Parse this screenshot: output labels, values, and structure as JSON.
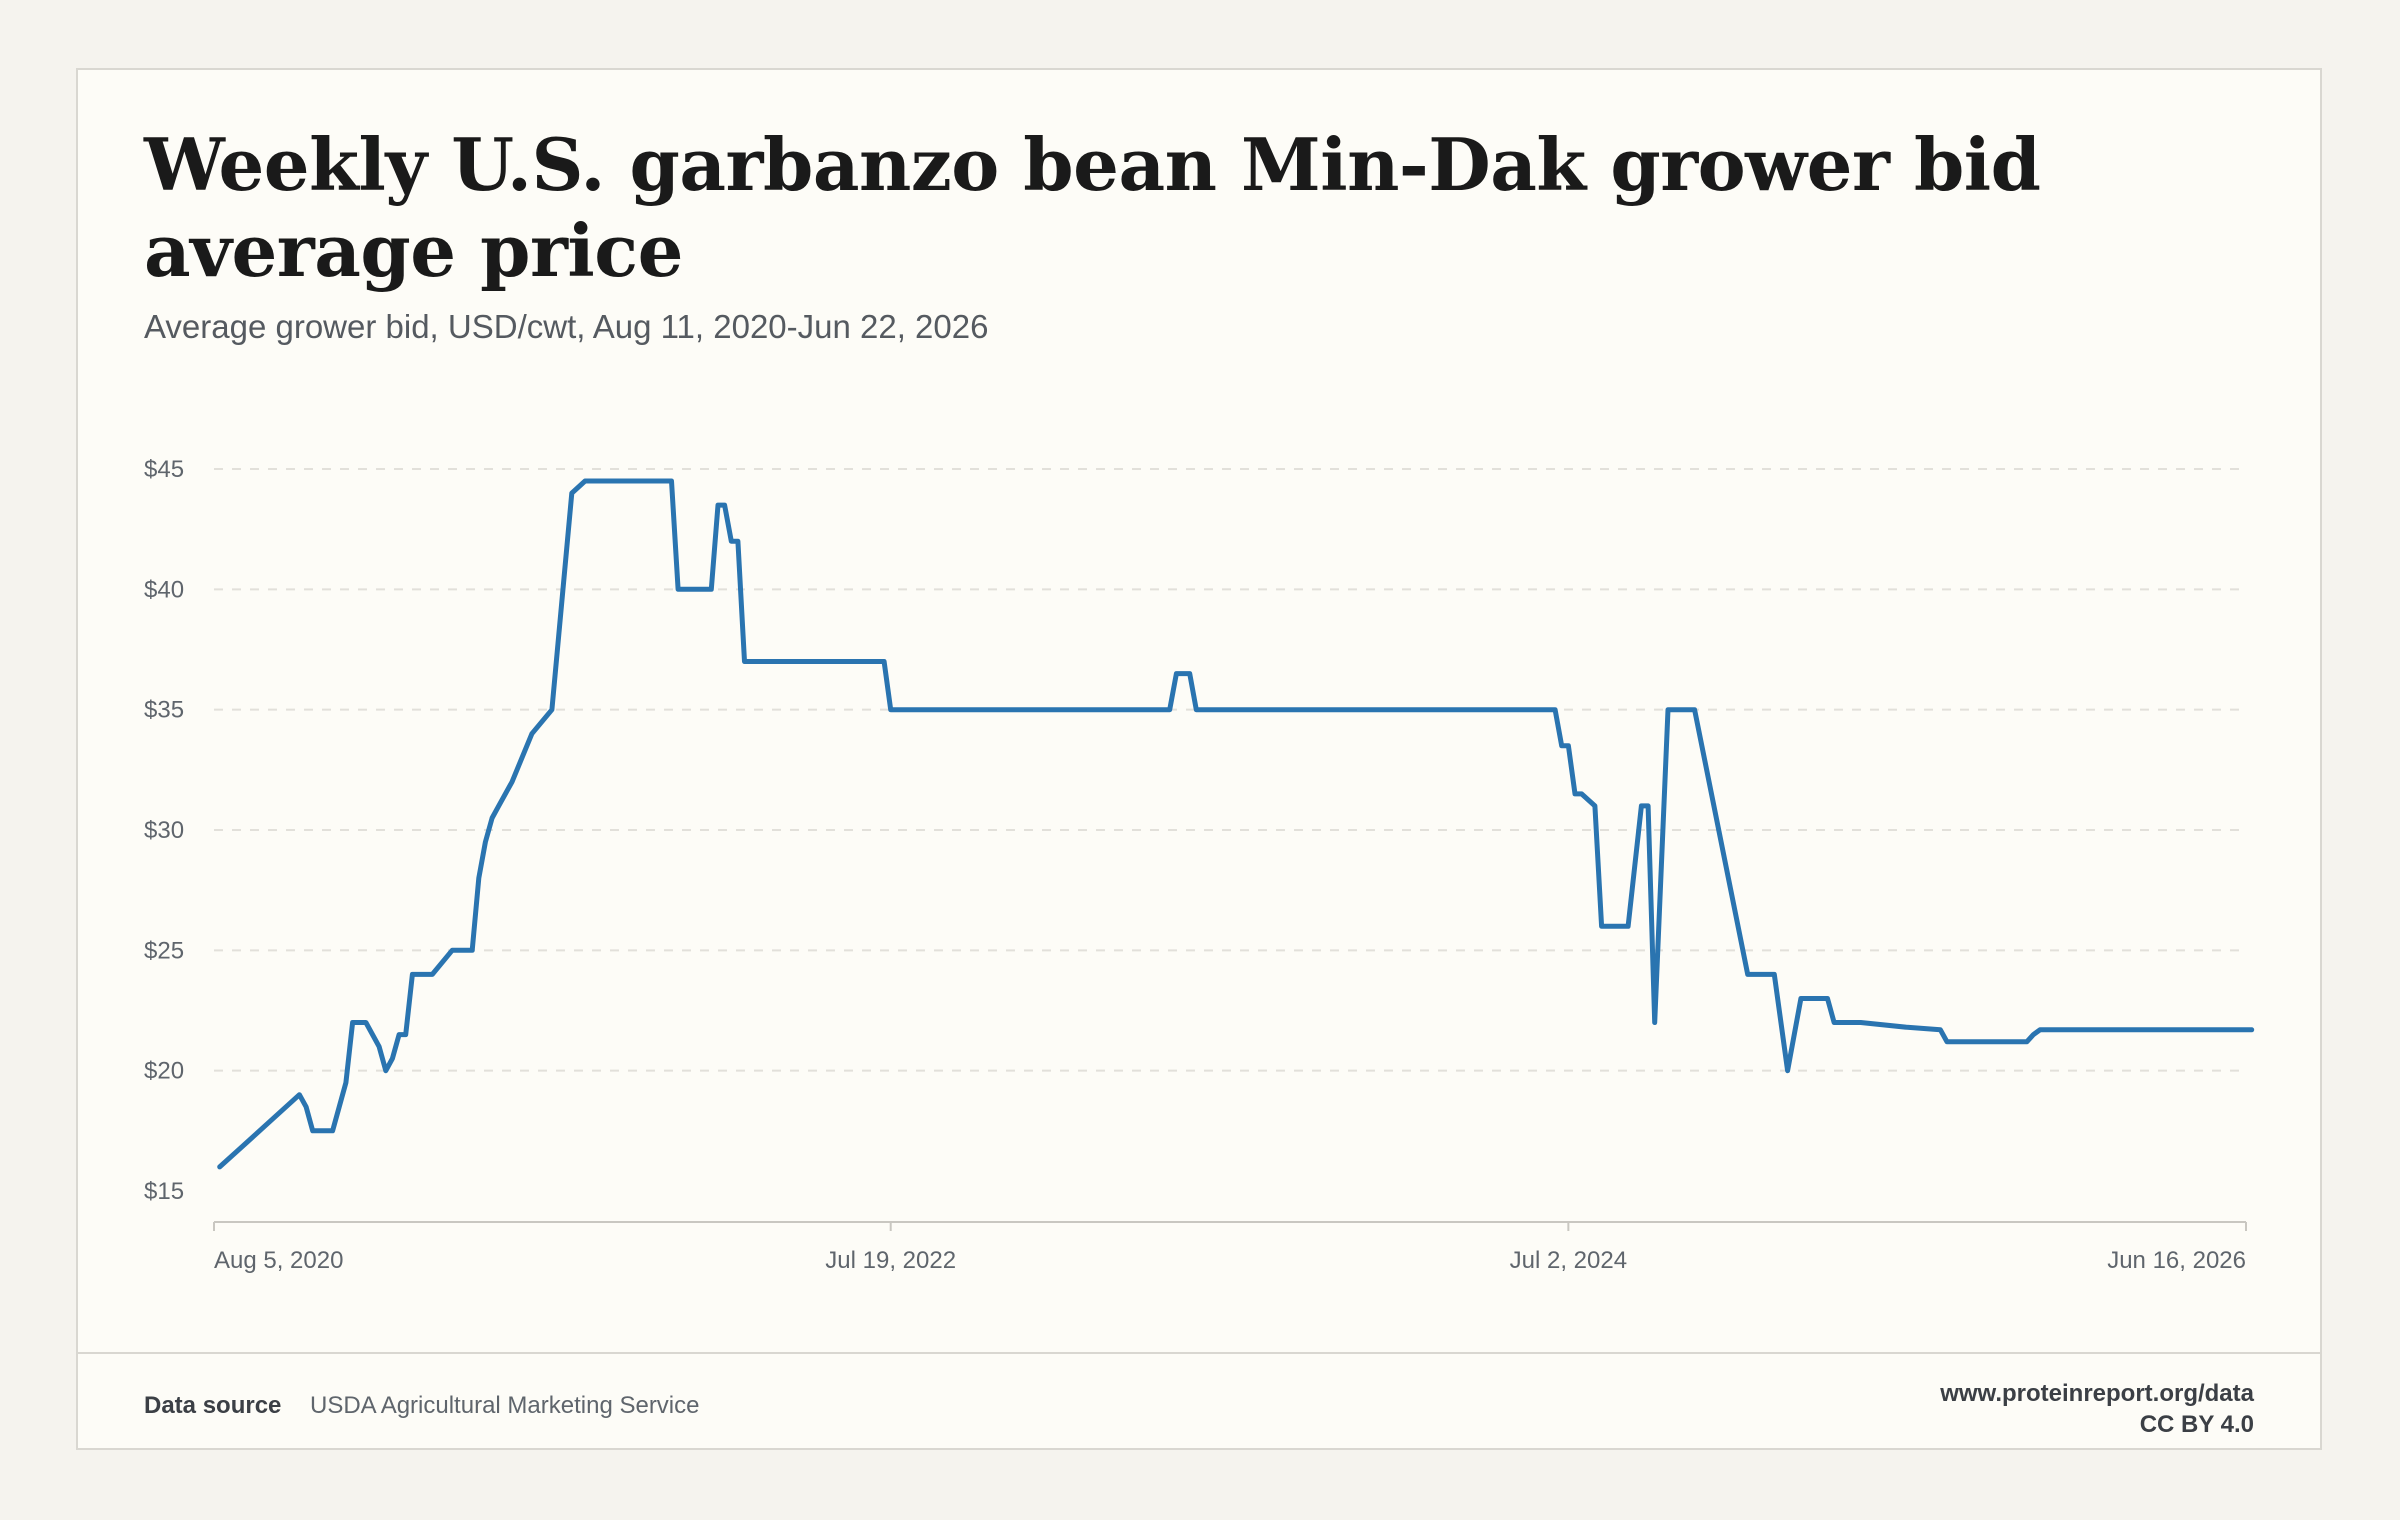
{
  "title": "Weekly U.S. garbanzo bean Min-Dak grower bid average price",
  "subtitle": "Average grower bid, USD/cwt, Aug 11, 2020-Jun 22, 2026",
  "footer": {
    "source_label": "Data source",
    "source_value": "USDA Agricultural Marketing Service",
    "url": "www.proteinreport.org/data",
    "license": "CC BY 4.0"
  },
  "chart_data": {
    "type": "line",
    "title": "Weekly U.S. garbanzo bean Min-Dak grower bid average price",
    "subtitle": "Average grower bid, USD/cwt, Aug 11, 2020-Jun 22, 2026",
    "xlabel": "",
    "ylabel": "",
    "x_range": [
      "2020-08-05",
      "2026-06-16"
    ],
    "ylim": [
      15,
      45
    ],
    "y_ticks": [
      15,
      20,
      25,
      30,
      35,
      40,
      45
    ],
    "y_tick_labels": [
      "$15",
      "$20",
      "$25",
      "$30",
      "$35",
      "$40",
      "$45"
    ],
    "x_ticks": [
      "2020-08-05",
      "2022-07-19",
      "2024-07-02",
      "2026-06-16"
    ],
    "x_tick_labels": [
      "Aug 5, 2020",
      "Jul 19, 2022",
      "Jul 2, 2024",
      "Jun 16, 2026"
    ],
    "grid": "horizontal dashed",
    "line_color": "#2a74b0",
    "series": [
      {
        "x": [
          "2020-08-11",
          "2020-09-08",
          "2020-10-06",
          "2020-11-03",
          "2020-11-10",
          "2020-11-17",
          "2020-11-24",
          "2020-12-08",
          "2020-12-22",
          "2020-12-29",
          "2021-01-12",
          "2021-01-26",
          "2021-02-02",
          "2021-02-09",
          "2021-02-16",
          "2021-02-23",
          "2021-03-02",
          "2021-03-09",
          "2021-03-23",
          "2021-04-13",
          "2021-04-20",
          "2021-05-04",
          "2021-05-11",
          "2021-05-18",
          "2021-05-25",
          "2021-06-01",
          "2021-06-15",
          "2021-07-06",
          "2021-07-27",
          "2021-08-17",
          "2021-08-31",
          "2021-09-07",
          "2021-09-14",
          "2021-09-21",
          "2021-10-12",
          "2021-11-30",
          "2021-12-07",
          "2021-12-14",
          "2022-01-11",
          "2022-01-18",
          "2022-01-25",
          "2022-02-01",
          "2022-02-08",
          "2022-02-15",
          "2022-02-22",
          "2022-07-12",
          "2022-07-19",
          "2023-05-09",
          "2023-05-16",
          "2023-05-30",
          "2023-06-06",
          "2024-06-18",
          "2024-06-25",
          "2024-07-02",
          "2024-07-09",
          "2024-07-16",
          "2024-07-30",
          "2024-08-06",
          "2024-08-13",
          "2024-09-03",
          "2024-09-17",
          "2024-09-24",
          "2024-10-01",
          "2024-10-15",
          "2024-10-22",
          "2024-11-05",
          "2024-11-12",
          "2025-01-07",
          "2025-01-21",
          "2025-02-04",
          "2025-02-18",
          "2025-03-04",
          "2025-03-18",
          "2025-04-01",
          "2025-04-08",
          "2025-04-15",
          "2025-04-22",
          "2025-05-06",
          "2025-06-24",
          "2025-07-29",
          "2025-08-05",
          "2025-08-19",
          "2025-08-26",
          "2025-10-28",
          "2025-11-04",
          "2025-11-11",
          "2026-06-22"
        ],
        "y": [
          16,
          17,
          18,
          19,
          18.5,
          17.5,
          17.5,
          17.5,
          19.5,
          22,
          22,
          21,
          20,
          20.5,
          21.5,
          21.5,
          24,
          24,
          24,
          25,
          25,
          25,
          28,
          29.5,
          30.5,
          31,
          32,
          34,
          35,
          44,
          44.5,
          44.5,
          44.5,
          44.5,
          44.5,
          44.5,
          40,
          40,
          40,
          43.5,
          43.5,
          42,
          42,
          37,
          37,
          37,
          35,
          35,
          36.5,
          36.5,
          35,
          35,
          33.5,
          33.5,
          31.5,
          31.5,
          31,
          26,
          26,
          26,
          31,
          31,
          22,
          35,
          35,
          35,
          35,
          24,
          24,
          24,
          20,
          23,
          23,
          23,
          22,
          22,
          22,
          22,
          21.8,
          21.7,
          21.2,
          21.2,
          21.2,
          21.2,
          21.5,
          21.7,
          21.7
        ]
      }
    ]
  }
}
